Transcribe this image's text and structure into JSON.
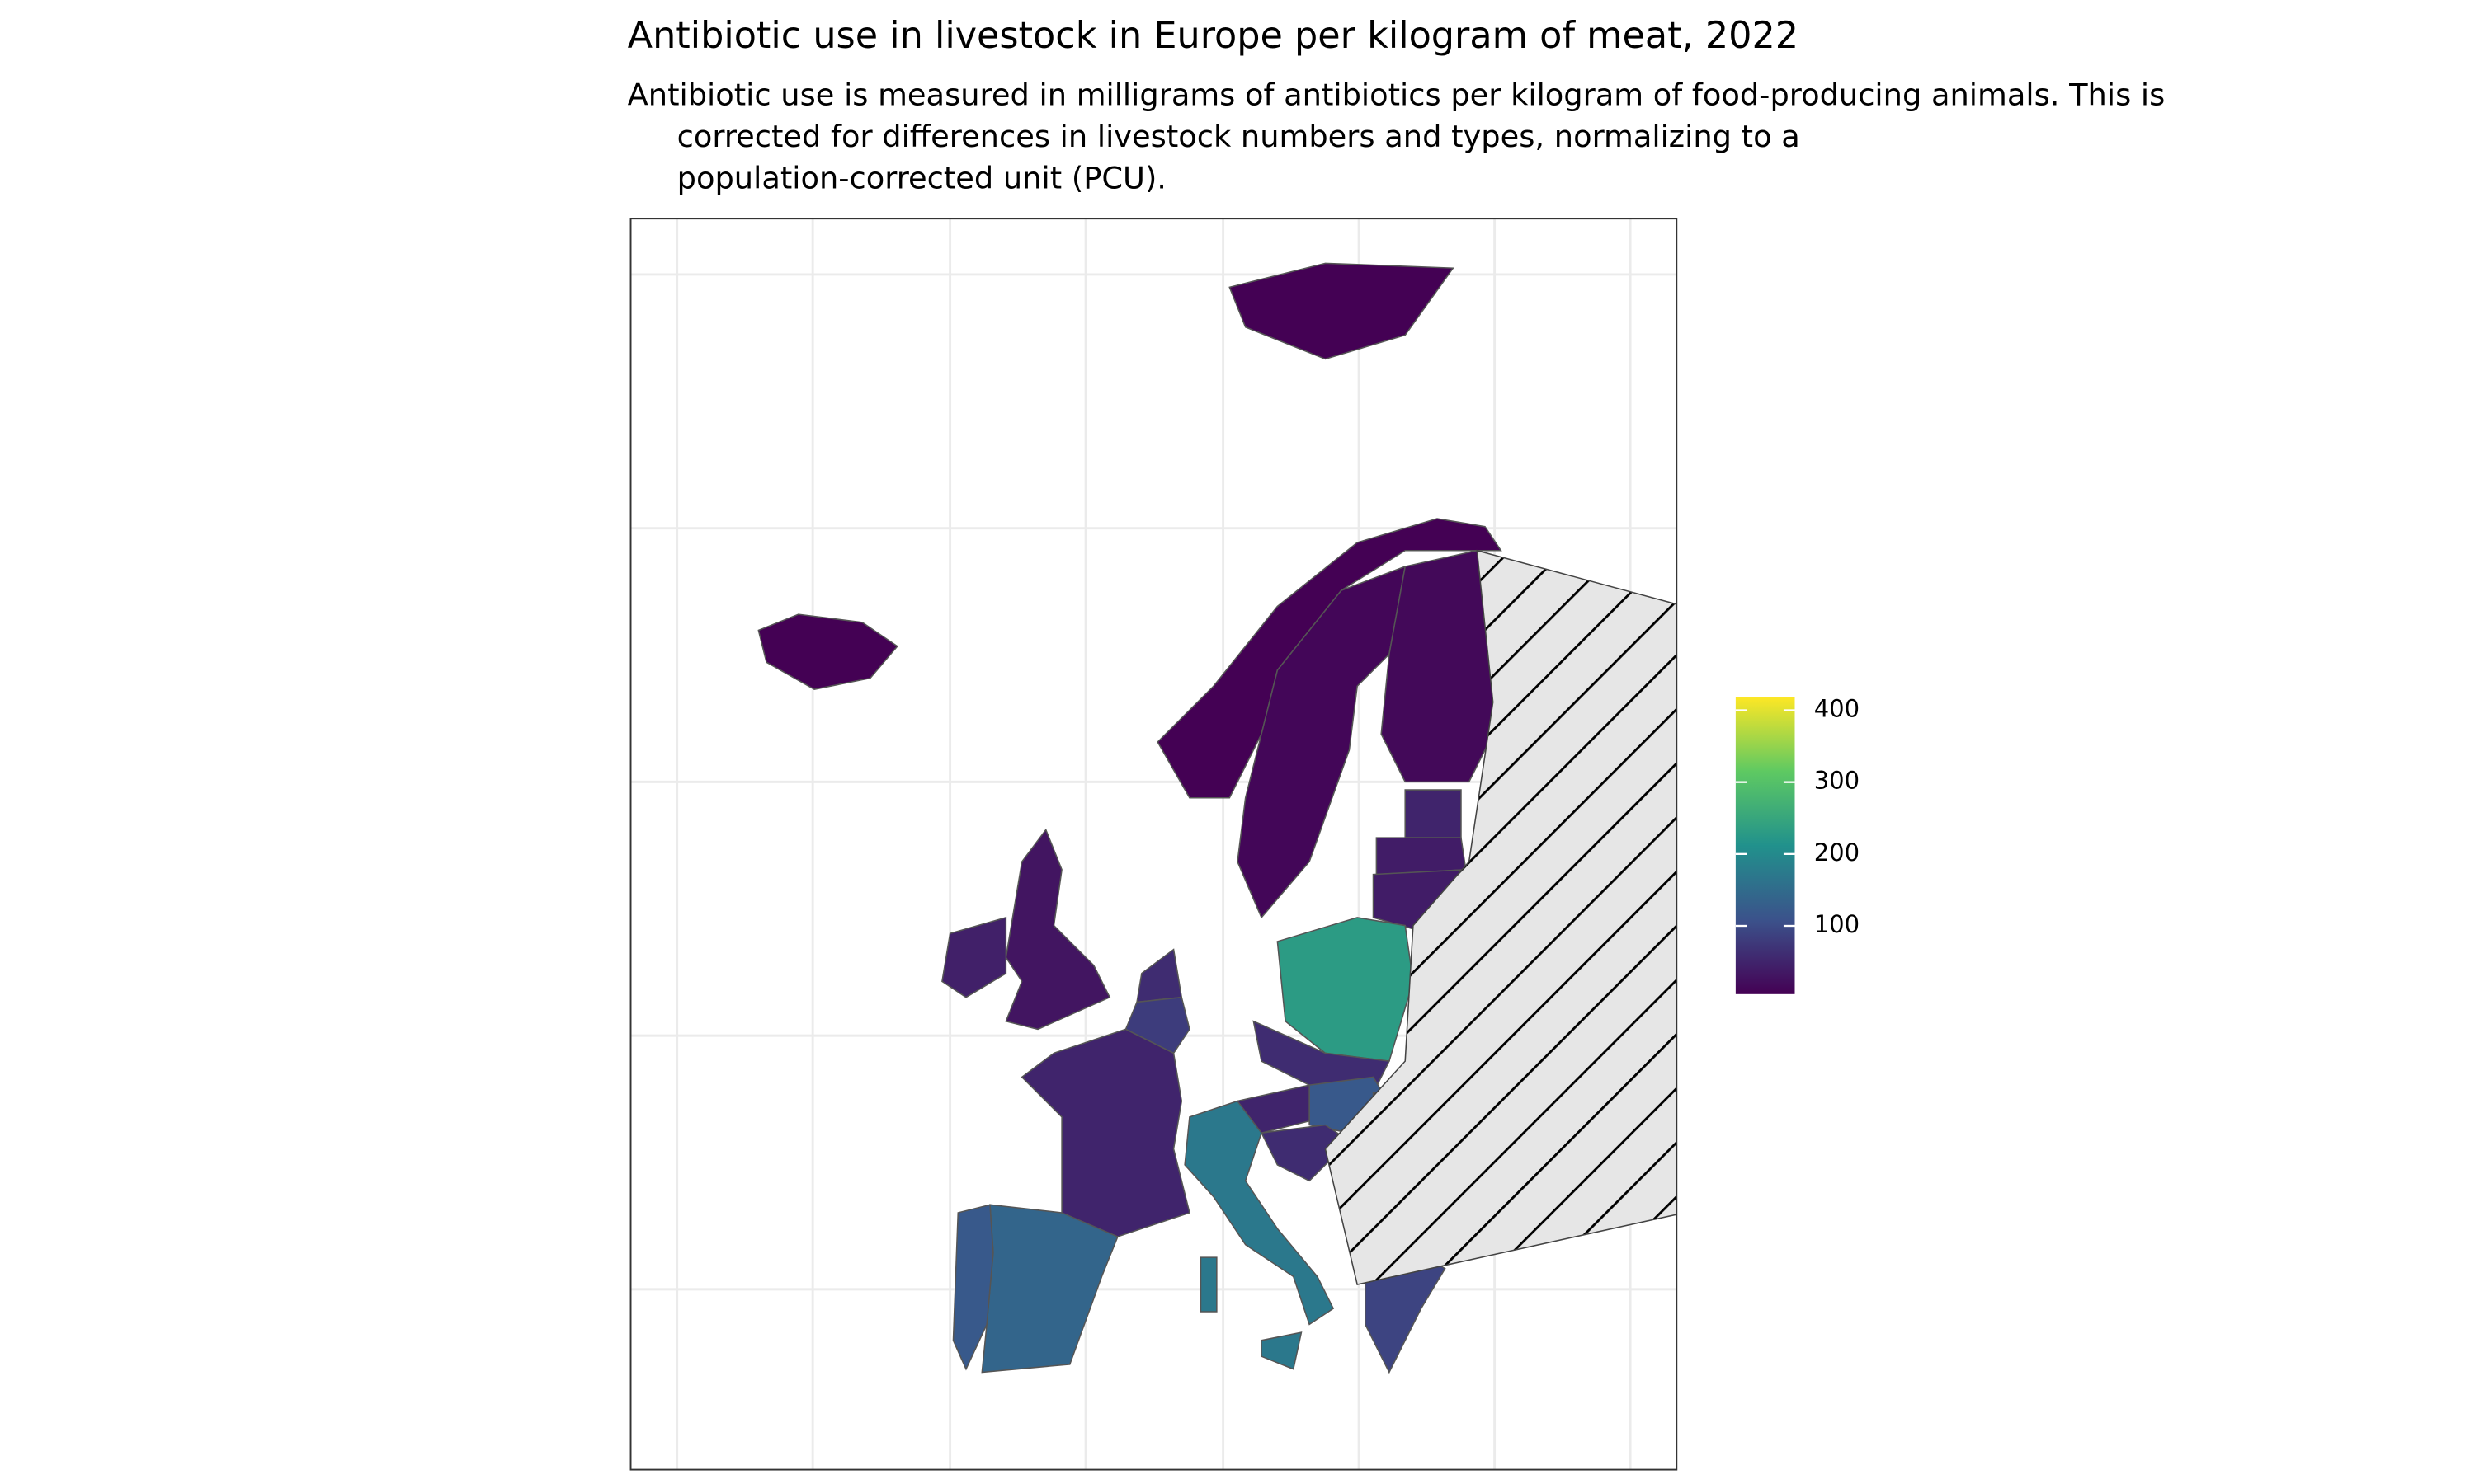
{
  "header": {
    "title": "Antibiotic use in livestock in Europe per kilogram of meat, 2022",
    "subtitle": [
      "Antibiotic use is measured in milligrams of antibiotics per kilogram of food-producing animals. This is",
      "corrected for differences in livestock numbers and types, normalizing to a",
      "population-corrected unit (PCU)."
    ]
  },
  "map": {
    "values": [
      1,
      3,
      12,
      15,
      50,
      40,
      40,
      30,
      45,
      60,
      80,
      230,
      50,
      140,
      120,
      50,
      60,
      170,
      120,
      60,
      70,
      100,
      90,
      170,
      170,
      3
    ],
    "legend": {
      "range": [
        5,
        418
      ],
      "ticks": [
        100,
        200,
        300,
        400
      ]
    }
  }
}
